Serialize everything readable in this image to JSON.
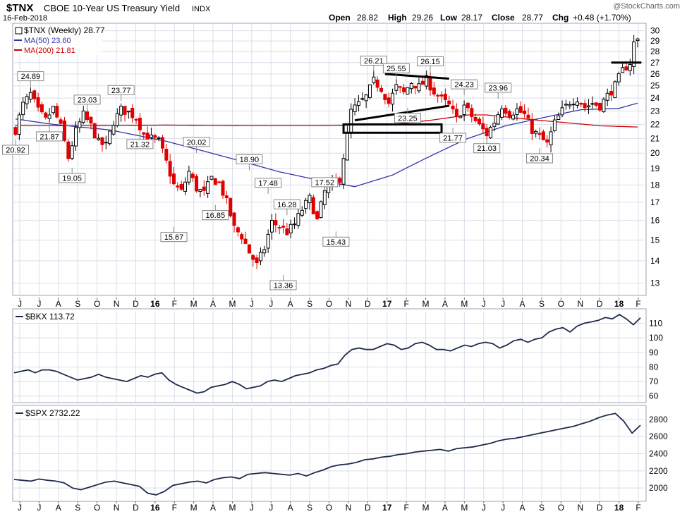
{
  "header": {
    "symbol": "$TNX",
    "name": "CBOE 10-Year US Treasury Yield",
    "exchange": "INDX",
    "date": "16-Feb-2018",
    "watermark": "@StockCharts.com",
    "open_label": "Open",
    "open": "28.82",
    "high_label": "High",
    "high": "29.26",
    "low_label": "Low",
    "low": "28.17",
    "close_label": "Close",
    "close": "28.77",
    "chg_label": "Chg",
    "chg": "+0.48 (+1.70%)"
  },
  "colors": {
    "up": "#000000",
    "down": "#e00000",
    "ma50": "#3333aa",
    "ma200": "#cc0000",
    "line": "#1f2a4d",
    "grid": "#d9dee8",
    "frame": "#9aa3b5",
    "label_bg": "#ffffff"
  },
  "chart_data": [
    {
      "type": "candlestick",
      "title": "$TNX (Weekly) 28.77",
      "legend": [
        {
          "name": "$TNX (Weekly)",
          "value": "28.77"
        },
        {
          "name": "MA(50)",
          "value": "23.60"
        },
        {
          "name": "MA(200)",
          "value": "21.81"
        }
      ],
      "x_ticks": [
        "J",
        "J",
        "A",
        "S",
        "O",
        "N",
        "D",
        "16",
        "F",
        "M",
        "A",
        "M",
        "J",
        "J",
        "A",
        "S",
        "O",
        "N",
        "D",
        "17",
        "F",
        "M",
        "A",
        "M",
        "J",
        "J",
        "A",
        "S",
        "O",
        "N",
        "D",
        "18",
        "F"
      ],
      "y_ticks": [
        13,
        14,
        15,
        16,
        17,
        18,
        19,
        20,
        21,
        22,
        23,
        24,
        25,
        26,
        27,
        28,
        29,
        30
      ],
      "ylim": [
        12.6,
        30.4
      ],
      "y_scale": "log",
      "close_path": [
        [
          0,
          21.6
        ],
        [
          2,
          23.5
        ],
        [
          4,
          24.3
        ],
        [
          6,
          23.0
        ],
        [
          8,
          22.3
        ],
        [
          10,
          23.2
        ],
        [
          12,
          21.8
        ],
        [
          14,
          19.7
        ],
        [
          16,
          21.5
        ],
        [
          18,
          22.7
        ],
        [
          20,
          21.9
        ],
        [
          22,
          20.7
        ],
        [
          24,
          20.5
        ],
        [
          26,
          22.2
        ],
        [
          28,
          23.1
        ],
        [
          30,
          22.9
        ],
        [
          32,
          22.5
        ],
        [
          34,
          21.3
        ],
        [
          36,
          21.0
        ],
        [
          38,
          20.8
        ],
        [
          40,
          19.4
        ],
        [
          42,
          18.0
        ],
        [
          44,
          17.6
        ],
        [
          46,
          18.8
        ],
        [
          48,
          17.8
        ],
        [
          50,
          17.5
        ],
        [
          52,
          18.4
        ],
        [
          54,
          18.1
        ],
        [
          56,
          17.0
        ],
        [
          58,
          15.6
        ],
        [
          60,
          15.2
        ],
        [
          62,
          14.4
        ],
        [
          64,
          13.8
        ],
        [
          66,
          14.6
        ],
        [
          68,
          15.9
        ],
        [
          70,
          15.7
        ],
        [
          72,
          15.4
        ],
        [
          74,
          15.8
        ],
        [
          76,
          16.6
        ],
        [
          78,
          17.2
        ],
        [
          80,
          16.0
        ],
        [
          82,
          17.6
        ],
        [
          84,
          18.1
        ],
        [
          86,
          18.4
        ],
        [
          88,
          21.2
        ],
        [
          89,
          23.0
        ],
        [
          91,
          23.5
        ],
        [
          93,
          24.1
        ],
        [
          95,
          25.4
        ],
        [
          97,
          24.8
        ],
        [
          99,
          23.6
        ],
        [
          101,
          24.9
        ],
        [
          103,
          24.4
        ],
        [
          105,
          25.3
        ],
        [
          107,
          24.9
        ],
        [
          109,
          25.5
        ],
        [
          111,
          24.5
        ],
        [
          113,
          23.9
        ],
        [
          115,
          23.4
        ],
        [
          117,
          22.4
        ],
        [
          119,
          23.4
        ],
        [
          121,
          22.6
        ],
        [
          123,
          21.9
        ],
        [
          125,
          21.3
        ],
        [
          127,
          22.2
        ],
        [
          129,
          23.4
        ],
        [
          131,
          22.8
        ],
        [
          133,
          23.1
        ],
        [
          135,
          22.7
        ],
        [
          137,
          21.6
        ],
        [
          139,
          21.1
        ],
        [
          141,
          20.6
        ],
        [
          143,
          22.1
        ],
        [
          145,
          23.0
        ],
        [
          147,
          23.7
        ],
        [
          149,
          24.0
        ],
        [
          151,
          23.3
        ],
        [
          153,
          23.6
        ],
        [
          155,
          23.4
        ],
        [
          157,
          24.2
        ],
        [
          159,
          25.0
        ],
        [
          161,
          26.3
        ],
        [
          163,
          27.0
        ],
        [
          164,
          28.8
        ],
        [
          165,
          29.1
        ]
      ],
      "ma50_path": [
        [
          0,
          22.4
        ],
        [
          10,
          22.0
        ],
        [
          25,
          21.6
        ],
        [
          40,
          20.8
        ],
        [
          55,
          19.8
        ],
        [
          70,
          18.8
        ],
        [
          82,
          18.2
        ],
        [
          90,
          17.9
        ],
        [
          100,
          18.6
        ],
        [
          110,
          19.8
        ],
        [
          120,
          21.0
        ],
        [
          130,
          21.9
        ],
        [
          140,
          22.5
        ],
        [
          150,
          23.1
        ],
        [
          160,
          23.2
        ],
        [
          165,
          23.6
        ]
      ],
      "ma200_path": [
        [
          0,
          21.9
        ],
        [
          20,
          21.9
        ],
        [
          40,
          21.95
        ],
        [
          60,
          21.9
        ],
        [
          80,
          21.9
        ],
        [
          100,
          22.0
        ],
        [
          110,
          22.3
        ],
        [
          120,
          22.7
        ],
        [
          125,
          22.7
        ],
        [
          135,
          22.4
        ],
        [
          145,
          22.15
        ],
        [
          155,
          21.9
        ],
        [
          165,
          21.81
        ]
      ],
      "annotations": [
        {
          "text": "20.92",
          "x": 0,
          "y": 20.92,
          "pos": "below"
        },
        {
          "text": "24.89",
          "x": 4,
          "y": 24.89,
          "pos": "above"
        },
        {
          "text": "21.87",
          "x": 9,
          "y": 21.87,
          "pos": "below"
        },
        {
          "text": "23.03",
          "x": 19,
          "y": 23.03,
          "pos": "above"
        },
        {
          "text": "19.05",
          "x": 15,
          "y": 19.05,
          "pos": "below"
        },
        {
          "text": "23.77",
          "x": 28,
          "y": 23.77,
          "pos": "above"
        },
        {
          "text": "21.32",
          "x": 33,
          "y": 21.32,
          "pos": "below"
        },
        {
          "text": "20.02",
          "x": 48,
          "y": 20.02,
          "pos": "above"
        },
        {
          "text": "15.67",
          "x": 42,
          "y": 15.67,
          "pos": "below"
        },
        {
          "text": "16.85",
          "x": 53,
          "y": 16.85,
          "pos": "below"
        },
        {
          "text": "18.90",
          "x": 62,
          "y": 18.9,
          "pos": "above"
        },
        {
          "text": "17.48",
          "x": 67,
          "y": 17.48,
          "pos": "above"
        },
        {
          "text": "16.28",
          "x": 72,
          "y": 16.28,
          "pos": "above"
        },
        {
          "text": "13.36",
          "x": 71,
          "y": 13.36,
          "pos": "below"
        },
        {
          "text": "17.52",
          "x": 82,
          "y": 17.52,
          "pos": "above"
        },
        {
          "text": "15.43",
          "x": 85,
          "y": 15.43,
          "pos": "below"
        },
        {
          "text": "26.21",
          "x": 95,
          "y": 26.21,
          "pos": "above"
        },
        {
          "text": "25.55",
          "x": 101,
          "y": 25.55,
          "pos": "above"
        },
        {
          "text": "26.15",
          "x": 110,
          "y": 26.15,
          "pos": "above"
        },
        {
          "text": "23.25",
          "x": 104,
          "y": 23.25,
          "pos": "below"
        },
        {
          "text": "21.77",
          "x": 116,
          "y": 21.77,
          "pos": "below"
        },
        {
          "text": "24.23",
          "x": 119,
          "y": 24.23,
          "pos": "above"
        },
        {
          "text": "21.03",
          "x": 125,
          "y": 21.03,
          "pos": "below"
        },
        {
          "text": "23.96",
          "x": 128,
          "y": 23.96,
          "pos": "above"
        },
        {
          "text": "20.34",
          "x": 139,
          "y": 20.34,
          "pos": "below"
        }
      ],
      "drawings": [
        {
          "kind": "trendline",
          "from": [
            98,
            26.0
          ],
          "to": [
            115,
            25.6
          ]
        },
        {
          "kind": "trendline",
          "from": [
            90,
            22.3
          ],
          "to": [
            115,
            23.4
          ]
        },
        {
          "kind": "rect",
          "from": [
            87,
            21.4
          ],
          "to": [
            113,
            22.0
          ]
        },
        {
          "kind": "trendline",
          "from": [
            158,
            27.0
          ],
          "to": [
            166,
            27.0
          ]
        }
      ]
    },
    {
      "type": "line",
      "title": "$BKX 113.72",
      "legend": [
        {
          "name": "$BKX",
          "value": "113.72"
        }
      ],
      "y_ticks": [
        60,
        70,
        80,
        90,
        100,
        110
      ],
      "ylim": [
        56,
        118
      ],
      "values": [
        76,
        77,
        78,
        76,
        78,
        78,
        77,
        75,
        73,
        71,
        72,
        73,
        75,
        73,
        72,
        71,
        70,
        72,
        74,
        73,
        75,
        76,
        71,
        68,
        66,
        64,
        62,
        63,
        66,
        67,
        68,
        70,
        68,
        65,
        66,
        67,
        70,
        71,
        70,
        72,
        74,
        75,
        76,
        78,
        79,
        81,
        82,
        88,
        92,
        93,
        92,
        92,
        94,
        96,
        95,
        92,
        93,
        96,
        97,
        95,
        92,
        92,
        91,
        93,
        95,
        94,
        96,
        97,
        96,
        93,
        95,
        98,
        99,
        97,
        99,
        100,
        104,
        106,
        107,
        104,
        108,
        110,
        111,
        112,
        114,
        113,
        116,
        113,
        109,
        113.72
      ]
    },
    {
      "type": "line",
      "title": "$SPX 2732.22",
      "legend": [
        {
          "name": "$SPX",
          "value": "2732.22"
        }
      ],
      "y_ticks": [
        2000,
        2200,
        2400,
        2600,
        2800
      ],
      "ylim": [
        1870,
        2930
      ],
      "values": [
        2100,
        2090,
        2080,
        2105,
        2090,
        2080,
        2060,
        2000,
        1980,
        2010,
        2040,
        2070,
        2080,
        2060,
        2040,
        2020,
        1940,
        1920,
        1960,
        2030,
        2050,
        2070,
        2080,
        2060,
        2100,
        2120,
        2130,
        2110,
        2160,
        2170,
        2180,
        2170,
        2160,
        2150,
        2170,
        2140,
        2180,
        2210,
        2250,
        2270,
        2280,
        2300,
        2330,
        2340,
        2360,
        2370,
        2390,
        2400,
        2420,
        2430,
        2440,
        2450,
        2430,
        2460,
        2470,
        2480,
        2500,
        2520,
        2550,
        2570,
        2580,
        2600,
        2620,
        2640,
        2660,
        2680,
        2700,
        2720,
        2750,
        2780,
        2820,
        2850,
        2870,
        2780,
        2640,
        2732.22
      ]
    }
  ]
}
